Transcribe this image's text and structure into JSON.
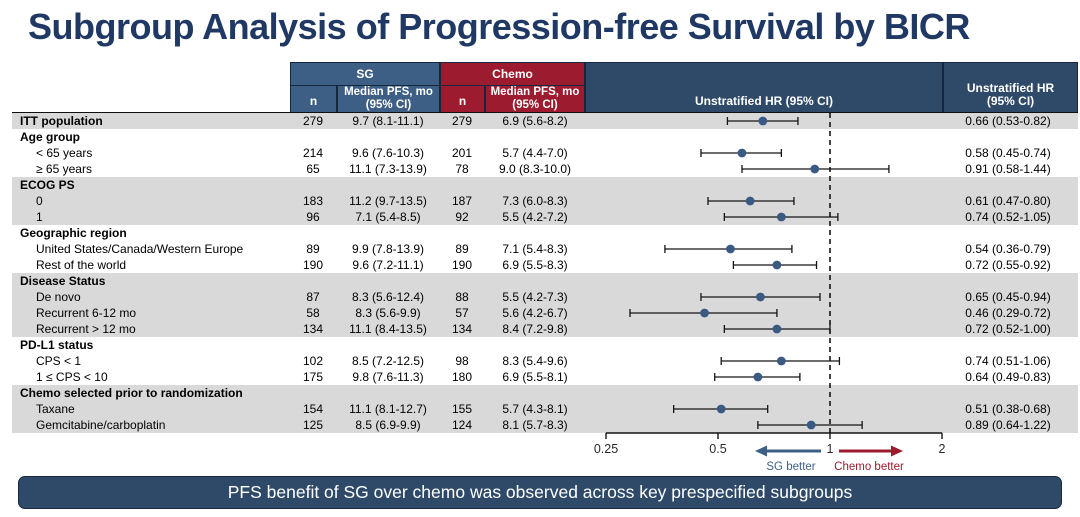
{
  "title": "Subgroup Analysis of Progression-free Survival by BICR",
  "header": {
    "sg_label": "SG",
    "chemo_label": "Chemo",
    "n_label_sg": "n",
    "n_label_chemo": "n",
    "median_line1": "Median PFS, mo",
    "median_line2": "(95% CI)",
    "plot_header": "Unstratified HR (95% CI)",
    "hr_col_line1": "Unstratified HR",
    "hr_col_line2": "(95% CI)"
  },
  "colors": {
    "title_navy": "#1f3864",
    "header_navy": "#2e4a68",
    "accent_blue": "#3e5f85",
    "accent_red": "#9c1b2e",
    "band_gray": "#d9d9d9",
    "marker_blue": "#3a5a84",
    "line_black": "#141414"
  },
  "chart_data": {
    "type": "forest",
    "x_axis": {
      "scale": "log2",
      "ticks": [
        0.25,
        0.5,
        1,
        2
      ],
      "tick_labels": [
        "0.25",
        "0.5",
        "1",
        "2"
      ],
      "reference_line": 1,
      "range": [
        0.25,
        2
      ]
    },
    "arrows": {
      "left_label": "SG better",
      "right_label": "Chemo better"
    },
    "rows": [
      {
        "label": "ITT population",
        "bold": true,
        "indent": false,
        "shade": "gray",
        "sg_n": "279",
        "sg_pfs": "9.7 (8.1-11.1)",
        "chemo_n": "279",
        "chemo_pfs": "6.9 (5.6-8.2)",
        "hr": 0.66,
        "ci_low": 0.53,
        "ci_high": 0.82,
        "hr_label": "0.66 (0.53-0.82)"
      },
      {
        "label": "Age group",
        "bold": true,
        "indent": false,
        "shade": "white"
      },
      {
        "label": "< 65 years",
        "bold": false,
        "indent": true,
        "shade": "white",
        "sg_n": "214",
        "sg_pfs": "9.6 (7.6-10.3)",
        "chemo_n": "201",
        "chemo_pfs": "5.7 (4.4-7.0)",
        "hr": 0.58,
        "ci_low": 0.45,
        "ci_high": 0.74,
        "hr_label": "0.58 (0.45-0.74)"
      },
      {
        "label": "≥ 65 years",
        "bold": false,
        "indent": true,
        "shade": "white",
        "sg_n": "65",
        "sg_pfs": "11.1 (7.3-13.9)",
        "chemo_n": "78",
        "chemo_pfs": "9.0 (8.3-10.0)",
        "hr": 0.91,
        "ci_low": 0.58,
        "ci_high": 1.44,
        "hr_label": "0.91 (0.58-1.44)"
      },
      {
        "label": "ECOG PS",
        "bold": true,
        "indent": false,
        "shade": "gray"
      },
      {
        "label": "0",
        "bold": false,
        "indent": true,
        "shade": "gray",
        "sg_n": "183",
        "sg_pfs": "11.2 (9.7-13.5)",
        "chemo_n": "187",
        "chemo_pfs": "7.3 (6.0-8.3)",
        "hr": 0.61,
        "ci_low": 0.47,
        "ci_high": 0.8,
        "hr_label": "0.61 (0.47-0.80)"
      },
      {
        "label": "1",
        "bold": false,
        "indent": true,
        "shade": "gray",
        "sg_n": "96",
        "sg_pfs": "7.1 (5.4-8.5)",
        "chemo_n": "92",
        "chemo_pfs": "5.5 (4.2-7.2)",
        "hr": 0.74,
        "ci_low": 0.52,
        "ci_high": 1.05,
        "hr_label": "0.74 (0.52-1.05)"
      },
      {
        "label": "Geographic region",
        "bold": true,
        "indent": false,
        "shade": "white"
      },
      {
        "label": "United States/Canada/Western Europe",
        "bold": false,
        "indent": true,
        "shade": "white",
        "sg_n": "89",
        "sg_pfs": "9.9 (7.8-13.9)",
        "chemo_n": "89",
        "chemo_pfs": "7.1 (5.4-8.3)",
        "hr": 0.54,
        "ci_low": 0.36,
        "ci_high": 0.79,
        "hr_label": "0.54 (0.36-0.79)"
      },
      {
        "label": "Rest of the world",
        "bold": false,
        "indent": true,
        "shade": "white",
        "sg_n": "190",
        "sg_pfs": "9.6 (7.2-11.1)",
        "chemo_n": "190",
        "chemo_pfs": "6.9 (5.5-8.3)",
        "hr": 0.72,
        "ci_low": 0.55,
        "ci_high": 0.92,
        "hr_label": "0.72 (0.55-0.92)"
      },
      {
        "label": "Disease Status",
        "bold": true,
        "indent": false,
        "shade": "gray"
      },
      {
        "label": "De novo",
        "bold": false,
        "indent": true,
        "shade": "gray",
        "sg_n": "87",
        "sg_pfs": "8.3 (5.6-12.4)",
        "chemo_n": "88",
        "chemo_pfs": "5.5 (4.2-7.3)",
        "hr": 0.65,
        "ci_low": 0.45,
        "ci_high": 0.94,
        "hr_label": "0.65 (0.45-0.94)"
      },
      {
        "label": "Recurrent 6-12 mo",
        "bold": false,
        "indent": true,
        "shade": "gray",
        "sg_n": "58",
        "sg_pfs": "8.3 (5.6-9.9)",
        "chemo_n": "57",
        "chemo_pfs": "5.6 (4.2-6.7)",
        "hr": 0.46,
        "ci_low": 0.29,
        "ci_high": 0.72,
        "hr_label": "0.46 (0.29-0.72)"
      },
      {
        "label": "Recurrent > 12 mo",
        "bold": false,
        "indent": true,
        "shade": "gray",
        "sg_n": "134",
        "sg_pfs": "11.1 (8.4-13.5)",
        "chemo_n": "134",
        "chemo_pfs": "8.4 (7.2-9.8)",
        "hr": 0.72,
        "ci_low": 0.52,
        "ci_high": 1.0,
        "hr_label": "0.72 (0.52-1.00)"
      },
      {
        "label": "PD-L1 status",
        "bold": true,
        "indent": false,
        "shade": "white"
      },
      {
        "label": "CPS < 1",
        "bold": false,
        "indent": true,
        "shade": "white",
        "sg_n": "102",
        "sg_pfs": "8.5 (7.2-12.5)",
        "chemo_n": "98",
        "chemo_pfs": "8.3 (5.4-9.6)",
        "hr": 0.74,
        "ci_low": 0.51,
        "ci_high": 1.06,
        "hr_label": "0.74 (0.51-1.06)"
      },
      {
        "label": "1 ≤ CPS < 10",
        "bold": false,
        "indent": true,
        "shade": "white",
        "sg_n": "175",
        "sg_pfs": "9.8 (7.6-11.3)",
        "chemo_n": "180",
        "chemo_pfs": "6.9 (5.5-8.1)",
        "hr": 0.64,
        "ci_low": 0.49,
        "ci_high": 0.83,
        "hr_label": "0.64 (0.49-0.83)"
      },
      {
        "label": "Chemo selected prior to randomization",
        "bold": true,
        "indent": false,
        "shade": "gray"
      },
      {
        "label": "Taxane",
        "bold": false,
        "indent": true,
        "shade": "gray",
        "sg_n": "154",
        "sg_pfs": "11.1 (8.1-12.7)",
        "chemo_n": "155",
        "chemo_pfs": "5.7 (4.3-8.1)",
        "hr": 0.51,
        "ci_low": 0.38,
        "ci_high": 0.68,
        "hr_label": "0.51 (0.38-0.68)"
      },
      {
        "label": "Gemcitabine/carboplatin",
        "bold": false,
        "indent": true,
        "shade": "gray",
        "sg_n": "125",
        "sg_pfs": "8.5 (6.9-9.9)",
        "chemo_n": "124",
        "chemo_pfs": "8.1 (5.7-8.3)",
        "hr": 0.89,
        "ci_low": 0.64,
        "ci_high": 1.22,
        "hr_label": "0.89 (0.64-1.22)"
      }
    ]
  },
  "footer": {
    "banner": "PFS benefit of SG over chemo was observed across key prespecified subgroups"
  }
}
